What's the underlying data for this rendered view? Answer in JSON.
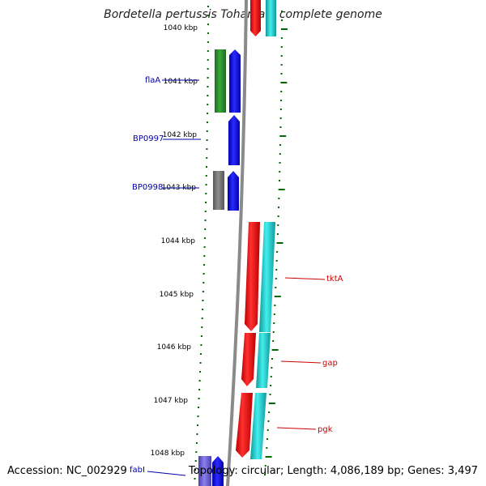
{
  "title": "Bordetella pertussis Tohama I, complete genome",
  "footer": {
    "accession": "Accession: NC_002929",
    "summary": "Topology: circular; Length: 4,086,189 bp; Genes: 3,497"
  },
  "colors": {
    "green": "#2e8b2e",
    "blue": "#0000ee",
    "gray": "#777777",
    "red": "#ee0000",
    "cyan": "#22cccc",
    "purple": "#6a5acd",
    "tick": "#006600",
    "backbone": "#8a8a8a",
    "label_blue": "#0000aa",
    "label_red": "#cc0000"
  },
  "scale_labels": [
    "1040 kbp",
    "1041 kbp",
    "1042 kbp",
    "1043 kbp",
    "1044 kbp",
    "1045 kbp",
    "1046 kbp",
    "1047 kbp",
    "1048 kbp"
  ],
  "gene_labels": [
    {
      "name": "flaA",
      "side": "left"
    },
    {
      "name": "BP0997",
      "side": "left"
    },
    {
      "name": "BP0998",
      "side": "left"
    },
    {
      "name": "tktA",
      "side": "right"
    },
    {
      "name": "gap",
      "side": "right"
    },
    {
      "name": "pgk",
      "side": "right"
    },
    {
      "name": "fabI",
      "side": "left"
    }
  ]
}
